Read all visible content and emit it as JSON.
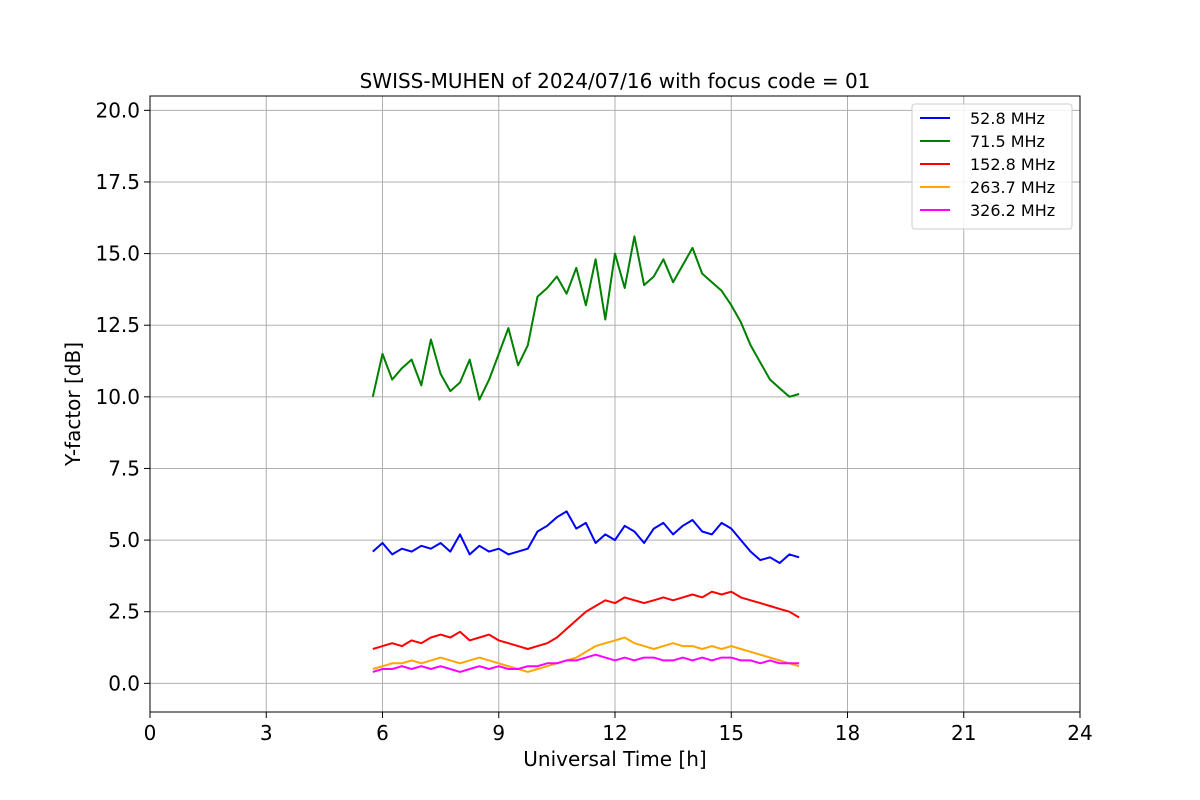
{
  "chart_data": {
    "type": "line",
    "title": "SWISS-MUHEN of 2024/07/16 with focus code = 01",
    "xlabel": "Universal Time [h]",
    "ylabel": "Y-factor [dB]",
    "xlim": [
      0,
      24
    ],
    "ylim": [
      -1,
      20.5
    ],
    "xticks": [
      0,
      3,
      6,
      9,
      12,
      15,
      18,
      21,
      24
    ],
    "xtick_labels": [
      "0",
      "3",
      "6",
      "9",
      "12",
      "15",
      "18",
      "21",
      "24"
    ],
    "yticks": [
      0,
      2.5,
      5,
      7.5,
      10,
      12.5,
      15,
      17.5,
      20
    ],
    "ytick_labels": [
      "0.0",
      "2.5",
      "5.0",
      "7.5",
      "10.0",
      "12.5",
      "15.0",
      "17.5",
      "20.0"
    ],
    "grid": true,
    "legend_position": "top-right",
    "series": [
      {
        "name": "52.8 MHz",
        "legend_label": "  52.8 MHz",
        "color": "#0000ff",
        "x": [
          5.75,
          6.0,
          6.25,
          6.5,
          6.75,
          7.0,
          7.25,
          7.5,
          7.75,
          8.0,
          8.25,
          8.5,
          8.75,
          9.0,
          9.25,
          9.5,
          9.75,
          10.0,
          10.25,
          10.5,
          10.75,
          11.0,
          11.25,
          11.5,
          11.75,
          12.0,
          12.25,
          12.5,
          12.75,
          13.0,
          13.25,
          13.5,
          13.75,
          14.0,
          14.25,
          14.5,
          14.75,
          15.0,
          15.25,
          15.5,
          15.75,
          16.0,
          16.25,
          16.5,
          16.75
        ],
        "y": [
          4.6,
          4.9,
          4.5,
          4.7,
          4.6,
          4.8,
          4.7,
          4.9,
          4.6,
          5.2,
          4.5,
          4.8,
          4.6,
          4.7,
          4.5,
          4.6,
          4.7,
          5.3,
          5.5,
          5.8,
          6.0,
          5.4,
          5.6,
          4.9,
          5.2,
          5.0,
          5.5,
          5.3,
          4.9,
          5.4,
          5.6,
          5.2,
          5.5,
          5.7,
          5.3,
          5.2,
          5.6,
          5.4,
          5.0,
          4.6,
          4.3,
          4.4,
          4.2,
          4.5,
          4.4
        ]
      },
      {
        "name": "71.5 MHz",
        "legend_label": "  71.5 MHz",
        "color": "#008000",
        "x": [
          5.75,
          6.0,
          6.25,
          6.5,
          6.75,
          7.0,
          7.25,
          7.5,
          7.75,
          8.0,
          8.25,
          8.5,
          8.75,
          9.0,
          9.25,
          9.5,
          9.75,
          10.0,
          10.25,
          10.5,
          10.75,
          11.0,
          11.25,
          11.5,
          11.75,
          12.0,
          12.25,
          12.5,
          12.75,
          13.0,
          13.25,
          13.5,
          13.75,
          14.0,
          14.25,
          14.5,
          14.75,
          15.0,
          15.25,
          15.5,
          15.75,
          16.0,
          16.25,
          16.5,
          16.75
        ],
        "y": [
          10.0,
          11.5,
          10.6,
          11.0,
          11.3,
          10.4,
          12.0,
          10.8,
          10.2,
          10.5,
          11.3,
          9.9,
          10.6,
          11.5,
          12.4,
          11.1,
          11.8,
          13.5,
          13.8,
          14.2,
          13.6,
          14.5,
          13.2,
          14.8,
          12.7,
          15.0,
          13.8,
          15.6,
          13.9,
          14.2,
          14.8,
          14.0,
          14.6,
          15.2,
          14.3,
          14.0,
          13.7,
          13.2,
          12.6,
          11.8,
          11.2,
          10.6,
          10.3,
          10.0,
          10.1
        ]
      },
      {
        "name": "152.8 MHz",
        "legend_label": "152.8 MHz",
        "color": "#ff0000",
        "x": [
          5.75,
          6.0,
          6.25,
          6.5,
          6.75,
          7.0,
          7.25,
          7.5,
          7.75,
          8.0,
          8.25,
          8.5,
          8.75,
          9.0,
          9.25,
          9.5,
          9.75,
          10.0,
          10.25,
          10.5,
          10.75,
          11.0,
          11.25,
          11.5,
          11.75,
          12.0,
          12.25,
          12.5,
          12.75,
          13.0,
          13.25,
          13.5,
          13.75,
          14.0,
          14.25,
          14.5,
          14.75,
          15.0,
          15.25,
          15.5,
          15.75,
          16.0,
          16.25,
          16.5,
          16.75
        ],
        "y": [
          1.2,
          1.3,
          1.4,
          1.3,
          1.5,
          1.4,
          1.6,
          1.7,
          1.6,
          1.8,
          1.5,
          1.6,
          1.7,
          1.5,
          1.4,
          1.3,
          1.2,
          1.3,
          1.4,
          1.6,
          1.9,
          2.2,
          2.5,
          2.7,
          2.9,
          2.8,
          3.0,
          2.9,
          2.8,
          2.9,
          3.0,
          2.9,
          3.0,
          3.1,
          3.0,
          3.2,
          3.1,
          3.2,
          3.0,
          2.9,
          2.8,
          2.7,
          2.6,
          2.5,
          2.3
        ]
      },
      {
        "name": "263.7 MHz",
        "legend_label": "263.7 MHz",
        "color": "#ffa500",
        "x": [
          5.75,
          6.0,
          6.25,
          6.5,
          6.75,
          7.0,
          7.25,
          7.5,
          7.75,
          8.0,
          8.25,
          8.5,
          8.75,
          9.0,
          9.25,
          9.5,
          9.75,
          10.0,
          10.25,
          10.5,
          10.75,
          11.0,
          11.25,
          11.5,
          11.75,
          12.0,
          12.25,
          12.5,
          12.75,
          13.0,
          13.25,
          13.5,
          13.75,
          14.0,
          14.25,
          14.5,
          14.75,
          15.0,
          15.25,
          15.5,
          15.75,
          16.0,
          16.25,
          16.5,
          16.75
        ],
        "y": [
          0.5,
          0.6,
          0.7,
          0.7,
          0.8,
          0.7,
          0.8,
          0.9,
          0.8,
          0.7,
          0.8,
          0.9,
          0.8,
          0.7,
          0.6,
          0.5,
          0.4,
          0.5,
          0.6,
          0.7,
          0.8,
          0.9,
          1.1,
          1.3,
          1.4,
          1.5,
          1.6,
          1.4,
          1.3,
          1.2,
          1.3,
          1.4,
          1.3,
          1.3,
          1.2,
          1.3,
          1.2,
          1.3,
          1.2,
          1.1,
          1.0,
          0.9,
          0.8,
          0.7,
          0.6
        ]
      },
      {
        "name": "326.2 MHz",
        "legend_label": "326.2 MHz",
        "color": "#ff00ff",
        "x": [
          5.75,
          6.0,
          6.25,
          6.5,
          6.75,
          7.0,
          7.25,
          7.5,
          7.75,
          8.0,
          8.25,
          8.5,
          8.75,
          9.0,
          9.25,
          9.5,
          9.75,
          10.0,
          10.25,
          10.5,
          10.75,
          11.0,
          11.25,
          11.5,
          11.75,
          12.0,
          12.25,
          12.5,
          12.75,
          13.0,
          13.25,
          13.5,
          13.75,
          14.0,
          14.25,
          14.5,
          14.75,
          15.0,
          15.25,
          15.5,
          15.75,
          16.0,
          16.25,
          16.5,
          16.75
        ],
        "y": [
          0.4,
          0.5,
          0.5,
          0.6,
          0.5,
          0.6,
          0.5,
          0.6,
          0.5,
          0.4,
          0.5,
          0.6,
          0.5,
          0.6,
          0.5,
          0.5,
          0.6,
          0.6,
          0.7,
          0.7,
          0.8,
          0.8,
          0.9,
          1.0,
          0.9,
          0.8,
          0.9,
          0.8,
          0.9,
          0.9,
          0.8,
          0.8,
          0.9,
          0.8,
          0.9,
          0.8,
          0.9,
          0.9,
          0.8,
          0.8,
          0.7,
          0.8,
          0.7,
          0.7,
          0.7
        ]
      }
    ]
  }
}
